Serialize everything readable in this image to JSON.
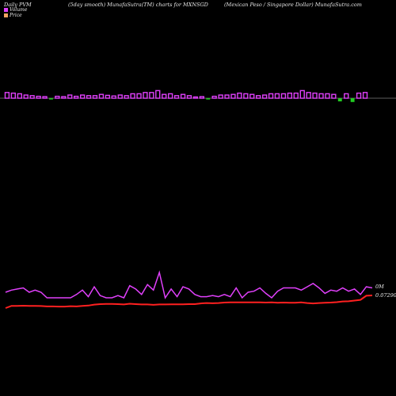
{
  "header": {
    "left": "Daily PVM",
    "middle": "(5day smooth) MunafaSutra(TM) charts for MXNSGD",
    "right": "(Mexican Peso / Singapore Dollar) MunafaSutra.com"
  },
  "legend": {
    "volume_label": "Volume",
    "price_label": "Price",
    "volume_color": "#e040fb",
    "price_color": "#f4a460"
  },
  "chart_data": {
    "type": "line",
    "annotations": {
      "volume_last": "0M",
      "price_last": "0.07290"
    },
    "colors": {
      "volume_up": "#e040fb",
      "volume_down": "#22cc22",
      "volume_line": "#e040fb",
      "price_line": "#ff2020"
    },
    "volume_bars": [
      {
        "dir": "up",
        "size": 0.9
      },
      {
        "dir": "up",
        "size": 0.8
      },
      {
        "dir": "up",
        "size": 0.7
      },
      {
        "dir": "up",
        "size": 0.5
      },
      {
        "dir": "up",
        "size": 0.4
      },
      {
        "dir": "up",
        "size": 0.3
      },
      {
        "dir": "up",
        "size": 0.25
      },
      {
        "dir": "down",
        "size": 0.2
      },
      {
        "dir": "up",
        "size": 0.3
      },
      {
        "dir": "up",
        "size": 0.25
      },
      {
        "dir": "up",
        "size": 0.5
      },
      {
        "dir": "up",
        "size": 0.3
      },
      {
        "dir": "up",
        "size": 0.5
      },
      {
        "dir": "up",
        "size": 0.4
      },
      {
        "dir": "up",
        "size": 0.4
      },
      {
        "dir": "up",
        "size": 0.6
      },
      {
        "dir": "up",
        "size": 0.45
      },
      {
        "dir": "up",
        "size": 0.35
      },
      {
        "dir": "up",
        "size": 0.5
      },
      {
        "dir": "up",
        "size": 0.4
      },
      {
        "dir": "up",
        "size": 0.7
      },
      {
        "dir": "up",
        "size": 0.7
      },
      {
        "dir": "up",
        "size": 0.9
      },
      {
        "dir": "up",
        "size": 0.9
      },
      {
        "dir": "up",
        "size": 1.2
      },
      {
        "dir": "up",
        "size": 0.6
      },
      {
        "dir": "up",
        "size": 0.7
      },
      {
        "dir": "up",
        "size": 0.4
      },
      {
        "dir": "up",
        "size": 0.6
      },
      {
        "dir": "up",
        "size": 0.4
      },
      {
        "dir": "up",
        "size": 0.2
      },
      {
        "dir": "up",
        "size": 0.25
      },
      {
        "dir": "down",
        "size": 0.2
      },
      {
        "dir": "up",
        "size": 0.3
      },
      {
        "dir": "up",
        "size": 0.5
      },
      {
        "dir": "up",
        "size": 0.5
      },
      {
        "dir": "up",
        "size": 0.6
      },
      {
        "dir": "up",
        "size": 0.8
      },
      {
        "dir": "up",
        "size": 0.7
      },
      {
        "dir": "up",
        "size": 0.6
      },
      {
        "dir": "up",
        "size": 0.4
      },
      {
        "dir": "up",
        "size": 0.5
      },
      {
        "dir": "up",
        "size": 0.7
      },
      {
        "dir": "up",
        "size": 0.7
      },
      {
        "dir": "up",
        "size": 0.7
      },
      {
        "dir": "up",
        "size": 0.8
      },
      {
        "dir": "up",
        "size": 0.8
      },
      {
        "dir": "up",
        "size": 1.2
      },
      {
        "dir": "up",
        "size": 0.9
      },
      {
        "dir": "up",
        "size": 0.8
      },
      {
        "dir": "up",
        "size": 0.7
      },
      {
        "dir": "up",
        "size": 0.7
      },
      {
        "dir": "up",
        "size": 0.6
      },
      {
        "dir": "down",
        "size": 0.5
      },
      {
        "dir": "up",
        "size": 0.7
      },
      {
        "dir": "down",
        "size": 0.6
      },
      {
        "dir": "up",
        "size": 0.8
      },
      {
        "dir": "up",
        "size": 0.9
      }
    ],
    "volume_line": [
      60,
      62,
      63,
      64,
      60,
      62,
      60,
      55,
      55,
      55,
      55,
      55,
      58,
      62,
      56,
      65,
      57,
      55,
      55,
      57,
      55,
      66,
      63,
      58,
      67,
      62,
      78,
      55,
      63,
      56,
      65,
      63,
      58,
      56,
      56,
      57,
      56,
      58,
      56,
      64,
      55,
      60,
      61,
      64,
      59,
      55,
      61,
      64,
      64,
      64,
      62,
      65,
      68,
      64,
      59,
      62,
      61,
      64,
      61,
      63,
      58,
      65,
      64
    ],
    "price_line": [
      0.0693,
      0.06993,
      0.06993,
      0.06998,
      0.06993,
      0.06993,
      0.06988,
      0.06978,
      0.06978,
      0.06973,
      0.06973,
      0.06983,
      0.06978,
      0.06993,
      0.07003,
      0.07028,
      0.07043,
      0.07048,
      0.07048,
      0.07043,
      0.07033,
      0.07053,
      0.07043,
      0.07033,
      0.07033,
      0.07023,
      0.07033,
      0.07033,
      0.07038,
      0.07038,
      0.07038,
      0.07043,
      0.07043,
      0.07063,
      0.07073,
      0.07068,
      0.07073,
      0.07088,
      0.07093,
      0.07093,
      0.07093,
      0.07093,
      0.07093,
      0.07093,
      0.07088,
      0.07093,
      0.07083,
      0.07088,
      0.07083,
      0.07083,
      0.07093,
      0.07073,
      0.07063,
      0.07073,
      0.07083,
      0.07088,
      0.07098,
      0.07118,
      0.07123,
      0.07143,
      0.07163,
      0.0728,
      0.0729
    ]
  }
}
